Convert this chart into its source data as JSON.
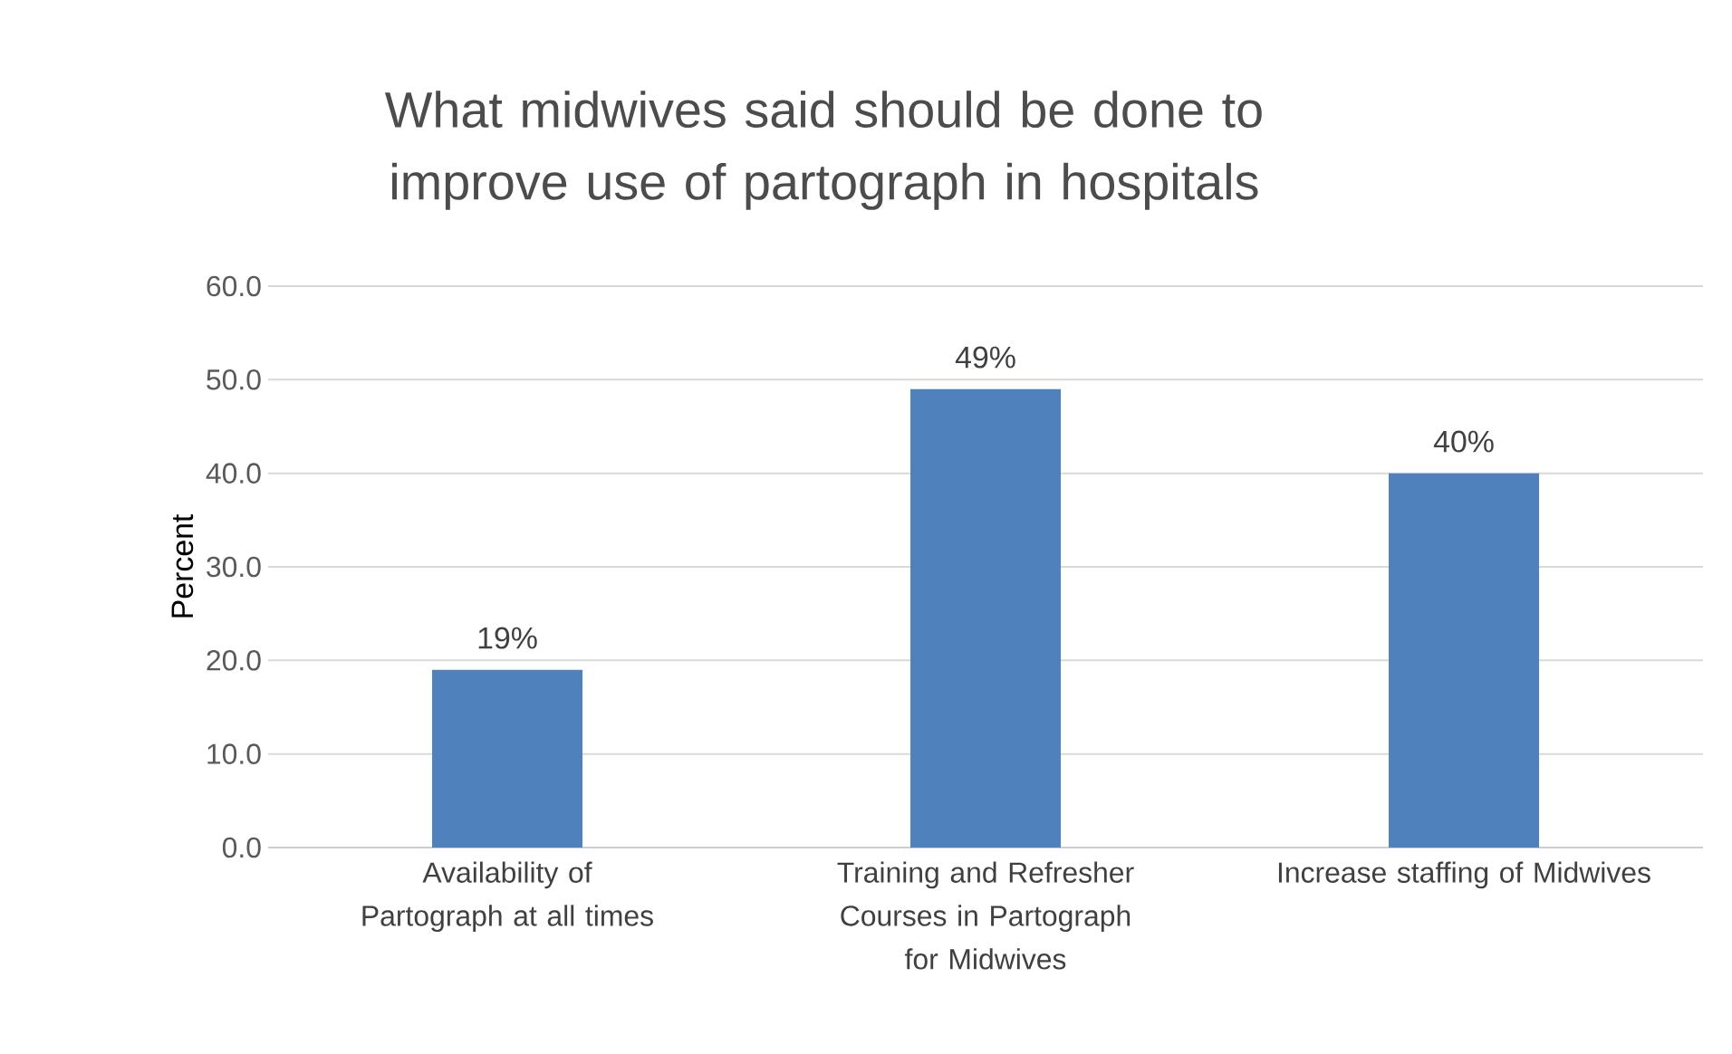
{
  "chart_data": {
    "type": "bar",
    "title": "What midwives said should be done to improve use of partograph in hospitals",
    "ylabel": "Percent",
    "categories": [
      "Availability of Partograph at all times",
      "Training and Refresher Courses in Partograph for Midwives",
      "Increase staffing of Midwives"
    ],
    "values": [
      19,
      49,
      40
    ],
    "value_labels": [
      "19%",
      "49%",
      "40%"
    ],
    "color": "#4f81bd",
    "ylim": [
      0,
      60
    ],
    "yticks": [
      {
        "value": 0,
        "label": "0.0"
      },
      {
        "value": 10,
        "label": "10.0"
      },
      {
        "value": 20,
        "label": "20.0"
      },
      {
        "value": 30,
        "label": "30.0"
      },
      {
        "value": 40,
        "label": "40.0"
      },
      {
        "value": 50,
        "label": "50.0"
      },
      {
        "value": 60,
        "label": "60.0"
      }
    ],
    "grid": "y"
  }
}
